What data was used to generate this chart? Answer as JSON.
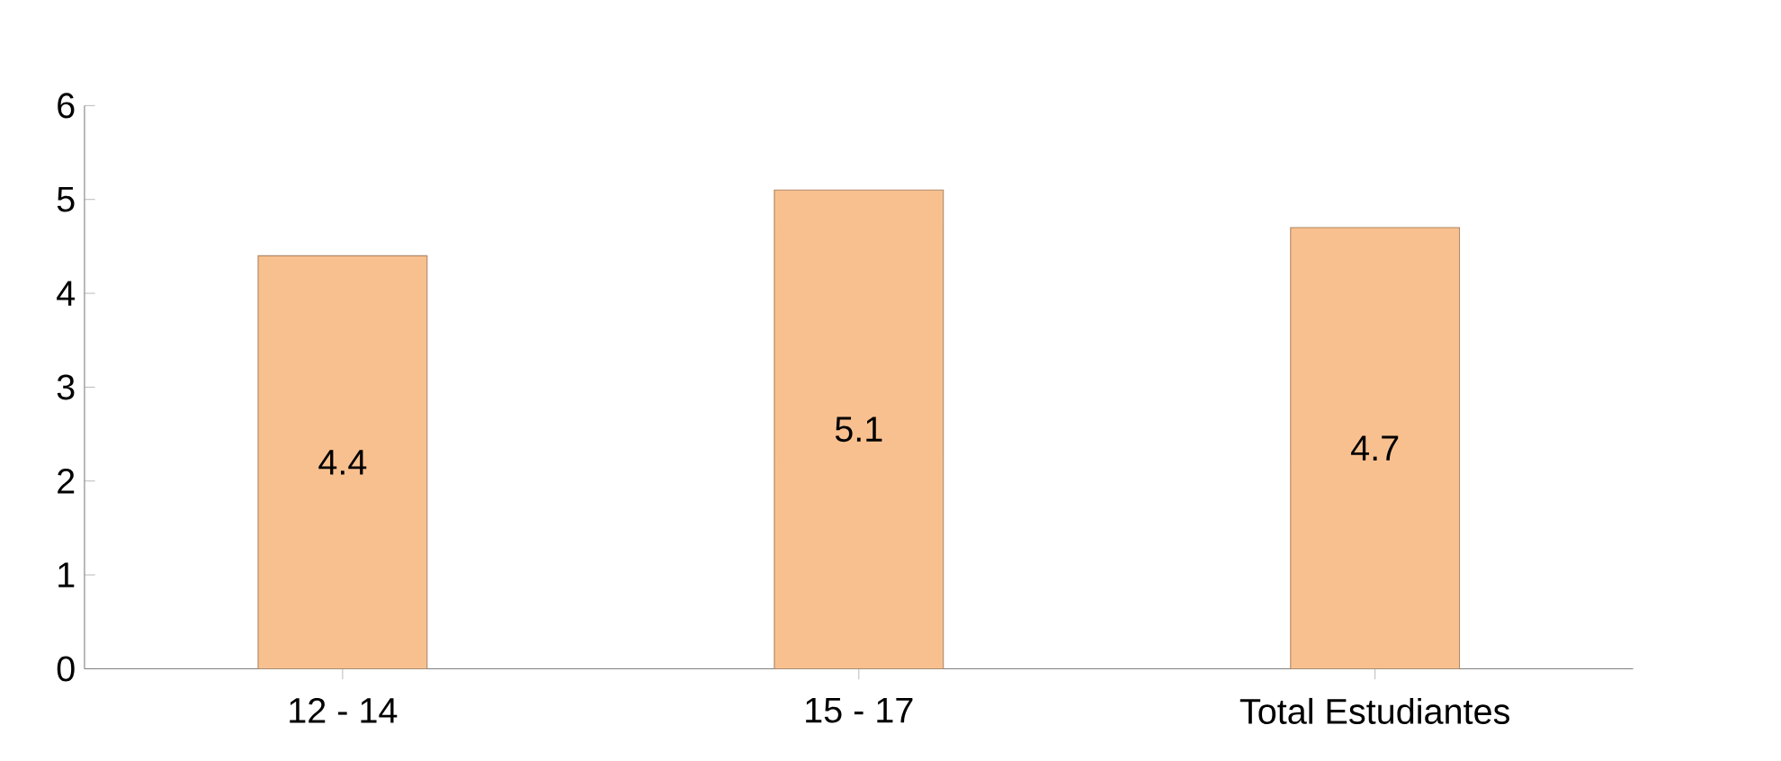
{
  "chart_data": {
    "type": "bar",
    "categories": [
      "12 - 14",
      "15 - 17",
      "Total Estudiantes"
    ],
    "values": [
      4.4,
      5.1,
      4.7
    ],
    "color": "#f9c08f",
    "ylim": [
      0,
      6
    ],
    "yticks": [
      0,
      1,
      2,
      3,
      4,
      5,
      6
    ],
    "data_labels": true
  }
}
